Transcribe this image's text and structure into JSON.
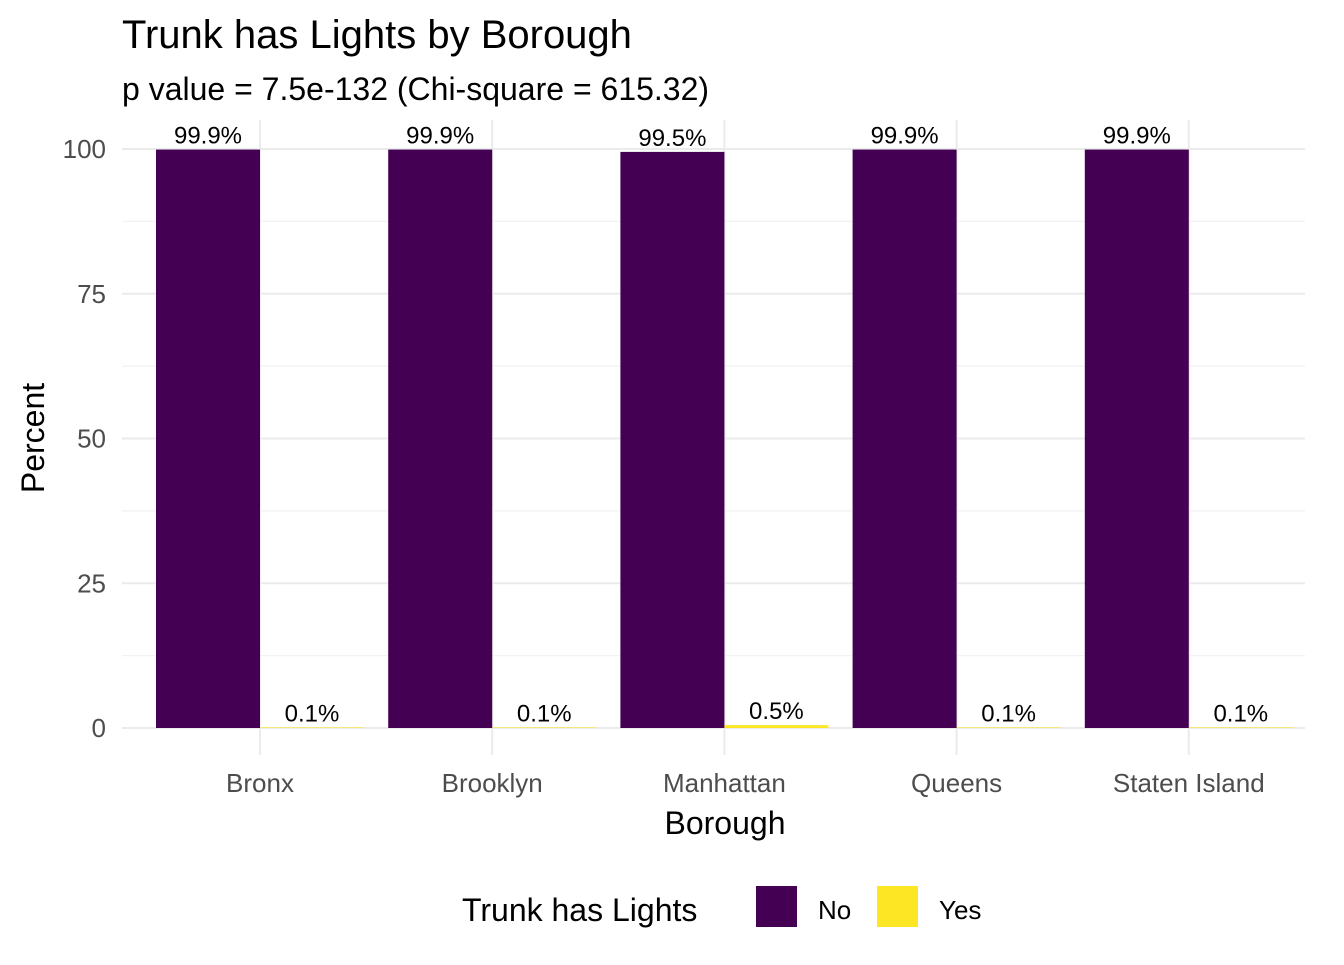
{
  "chart_data": {
    "type": "bar",
    "title": "Trunk has Lights by Borough",
    "subtitle": "p value = 7.5e-132 (Chi-square = 615.32)",
    "xlabel": "Borough",
    "ylabel": "Percent",
    "categories": [
      "Bronx",
      "Brooklyn",
      "Manhattan",
      "Queens",
      "Staten Island"
    ],
    "series": [
      {
        "name": "No",
        "color": "#440154",
        "values": [
          99.9,
          99.9,
          99.5,
          99.9,
          99.9
        ],
        "labels": [
          "99.9%",
          "99.9%",
          "99.5%",
          "99.9%",
          "99.9%"
        ]
      },
      {
        "name": "Yes",
        "color": "#FDE725",
        "values": [
          0.1,
          0.1,
          0.5,
          0.1,
          0.1
        ],
        "labels": [
          "0.1%",
          "0.1%",
          "0.5%",
          "0.1%",
          "0.1%"
        ]
      }
    ],
    "ylim": [
      0,
      100
    ],
    "yticks": [
      0,
      25,
      50,
      75,
      100
    ],
    "grid": true,
    "legend": {
      "title": "Trunk has Lights",
      "position": "bottom",
      "entries": [
        "No",
        "Yes"
      ]
    }
  }
}
